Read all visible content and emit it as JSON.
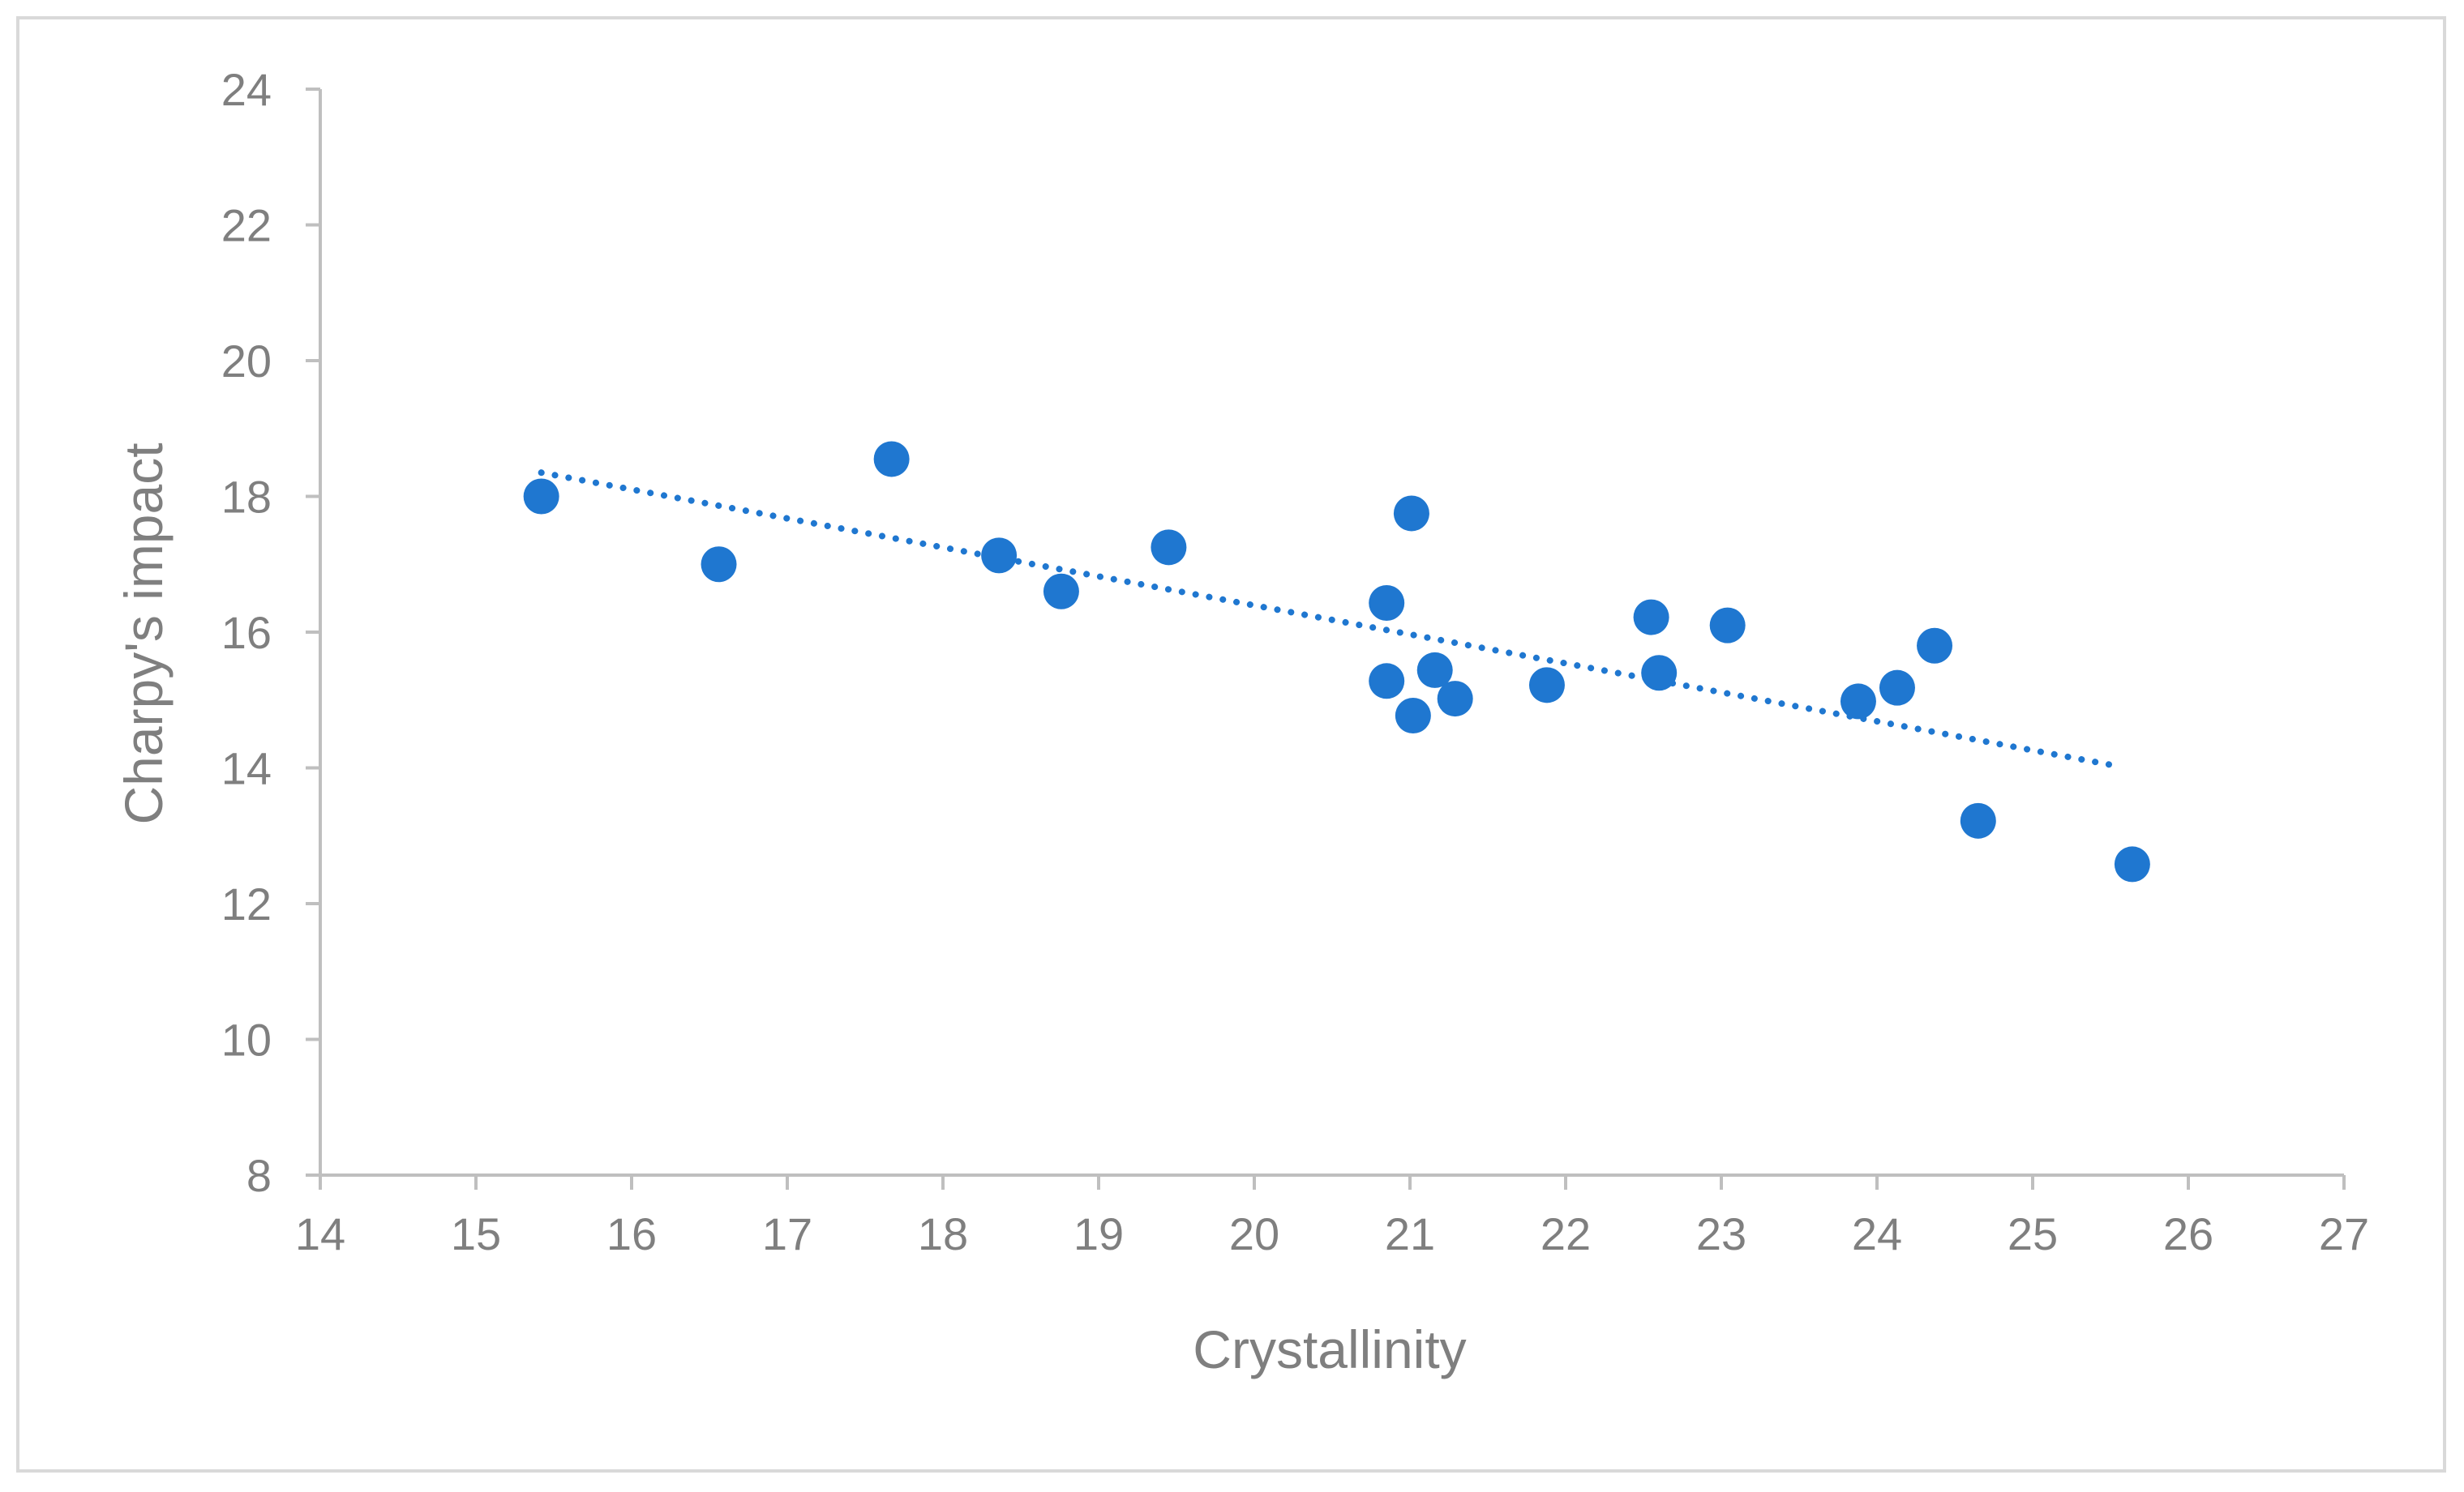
{
  "chart_data": {
    "type": "scatter",
    "title": "",
    "xlabel": "Crystallinity",
    "ylabel": "Charpy's impact",
    "xlim": [
      14,
      27
    ],
    "ylim": [
      8,
      24
    ],
    "x_ticks": [
      14,
      15,
      16,
      17,
      18,
      19,
      20,
      21,
      22,
      23,
      24,
      25,
      26,
      27
    ],
    "y_ticks": [
      8,
      10,
      12,
      14,
      16,
      18,
      20,
      22,
      24
    ],
    "grid": false,
    "legend": "none",
    "series": [
      {
        "name": "Charpy's impact",
        "color": "#1f77d0",
        "x": [
          15.42,
          16.56,
          17.67,
          18.36,
          18.76,
          19.45,
          20.85,
          20.85,
          21.01,
          21.02,
          21.16,
          21.29,
          21.88,
          22.55,
          22.6,
          23.04,
          23.88,
          24.13,
          24.37,
          24.65,
          25.64
        ],
        "y": [
          18.0,
          17.0,
          18.55,
          17.13,
          16.6,
          17.25,
          16.43,
          15.28,
          17.75,
          14.77,
          15.44,
          15.02,
          15.22,
          16.22,
          15.4,
          16.1,
          14.98,
          15.18,
          15.8,
          13.22,
          12.58
        ]
      }
    ],
    "trendline": {
      "type": "linear",
      "color": "#1f77d0",
      "style": "dotted",
      "x": [
        15.42,
        25.56
      ],
      "y": [
        18.35,
        14.02
      ]
    }
  }
}
